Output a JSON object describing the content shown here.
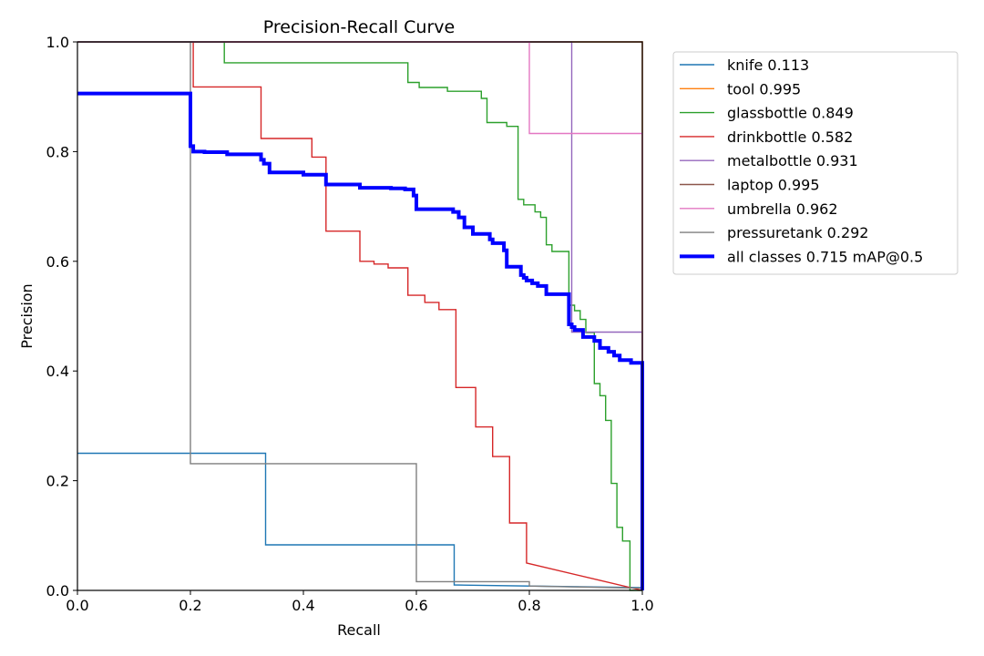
{
  "chart_data": {
    "type": "line",
    "title": "Precision-Recall Curve",
    "xlabel": "Recall",
    "ylabel": "Precision",
    "xlim": [
      0,
      1
    ],
    "ylim": [
      0,
      1
    ],
    "xticks": [
      "0.0",
      "0.2",
      "0.4",
      "0.6",
      "0.8",
      "1.0"
    ],
    "yticks": [
      "0.0",
      "0.2",
      "0.4",
      "0.6",
      "0.8",
      "1.0"
    ],
    "grid": false,
    "legend_position": "outside-right-top",
    "series": [
      {
        "name": "knife 0.113",
        "color": "#1f77b4",
        "x": [
          0.0,
          0.333,
          0.333,
          0.667,
          0.667,
          1.0,
          1.0
        ],
        "y": [
          0.25,
          0.25,
          0.083,
          0.083,
          0.01,
          0.005,
          0.0
        ]
      },
      {
        "name": "tool 0.995",
        "color": "#ff7f0e",
        "x": [
          0.0,
          1.0,
          1.0
        ],
        "y": [
          1.0,
          1.0,
          0.0
        ]
      },
      {
        "name": "glassbottle 0.849",
        "color": "#2ca02c",
        "x": [
          0.0,
          0.26,
          0.26,
          0.585,
          0.585,
          0.605,
          0.605,
          0.655,
          0.655,
          0.715,
          0.715,
          0.725,
          0.725,
          0.76,
          0.76,
          0.78,
          0.78,
          0.79,
          0.79,
          0.81,
          0.81,
          0.82,
          0.82,
          0.83,
          0.83,
          0.84,
          0.84,
          0.87,
          0.87,
          0.88,
          0.88,
          0.89,
          0.89,
          0.9,
          0.9,
          0.915,
          0.915,
          0.925,
          0.925,
          0.935,
          0.935,
          0.945,
          0.945,
          0.955,
          0.955,
          0.965,
          0.965,
          0.978,
          0.978,
          1.0
        ],
        "y": [
          1.0,
          1.0,
          0.962,
          0.962,
          0.926,
          0.926,
          0.917,
          0.917,
          0.91,
          0.91,
          0.897,
          0.897,
          0.853,
          0.853,
          0.846,
          0.846,
          0.713,
          0.713,
          0.703,
          0.703,
          0.69,
          0.69,
          0.68,
          0.68,
          0.63,
          0.63,
          0.618,
          0.618,
          0.52,
          0.52,
          0.51,
          0.51,
          0.494,
          0.494,
          0.47,
          0.47,
          0.377,
          0.377,
          0.355,
          0.355,
          0.31,
          0.31,
          0.195,
          0.195,
          0.115,
          0.115,
          0.09,
          0.09,
          0.0,
          0.0
        ]
      },
      {
        "name": "drinkbottle 0.582",
        "color": "#d62728",
        "x": [
          0.0,
          0.2,
          0.2,
          0.205,
          0.205,
          0.325,
          0.325,
          0.415,
          0.415,
          0.44,
          0.44,
          0.44,
          0.44,
          0.5,
          0.5,
          0.525,
          0.525,
          0.55,
          0.55,
          0.585,
          0.585,
          0.615,
          0.615,
          0.64,
          0.64,
          0.67,
          0.67,
          0.675,
          0.675,
          0.705,
          0.705,
          0.735,
          0.735,
          0.765,
          0.765,
          0.795,
          0.795,
          1.0
        ],
        "y": [
          1.0,
          1.0,
          1.0,
          1.0,
          0.918,
          0.918,
          0.824,
          0.824,
          0.79,
          0.79,
          0.74,
          0.74,
          0.655,
          0.655,
          0.6,
          0.6,
          0.595,
          0.595,
          0.588,
          0.588,
          0.538,
          0.538,
          0.525,
          0.525,
          0.512,
          0.512,
          0.37,
          0.37,
          0.37,
          0.37,
          0.298,
          0.298,
          0.244,
          0.244,
          0.123,
          0.123,
          0.05,
          0.0
        ]
      },
      {
        "name": "metalbottle 0.931",
        "color": "#9467bd",
        "x": [
          0.0,
          0.875,
          0.875,
          1.0,
          1.0
        ],
        "y": [
          1.0,
          1.0,
          0.471,
          0.471,
          0.0
        ]
      },
      {
        "name": "laptop 0.995",
        "color": "#8c564b",
        "x": [
          0.0,
          1.0,
          1.0
        ],
        "y": [
          1.0,
          1.0,
          0.0
        ]
      },
      {
        "name": "umbrella 0.962",
        "color": "#e377c2",
        "x": [
          0.0,
          0.8,
          0.8,
          1.0,
          1.0
        ],
        "y": [
          1.0,
          1.0,
          0.833,
          0.833,
          0.0
        ]
      },
      {
        "name": "pressuretank 0.292",
        "color": "#7f7f7f",
        "x": [
          0.0,
          0.2,
          0.2,
          0.6,
          0.6,
          0.8,
          0.8,
          1.0,
          1.0
        ],
        "y": [
          1.0,
          1.0,
          0.231,
          0.231,
          0.016,
          0.016,
          0.008,
          0.004,
          0.0
        ]
      },
      {
        "name": "all classes 0.715 mAP@0.5",
        "color": "#0000ff",
        "bold": true,
        "x": [
          0.0,
          0.2,
          0.2,
          0.205,
          0.205,
          0.225,
          0.225,
          0.265,
          0.265,
          0.325,
          0.325,
          0.33,
          0.33,
          0.34,
          0.34,
          0.4,
          0.4,
          0.44,
          0.44,
          0.5,
          0.5,
          0.555,
          0.555,
          0.58,
          0.58,
          0.595,
          0.595,
          0.6,
          0.6,
          0.665,
          0.665,
          0.675,
          0.675,
          0.685,
          0.685,
          0.7,
          0.7,
          0.73,
          0.73,
          0.735,
          0.735,
          0.755,
          0.755,
          0.76,
          0.76,
          0.785,
          0.785,
          0.79,
          0.79,
          0.795,
          0.795,
          0.805,
          0.805,
          0.815,
          0.815,
          0.83,
          0.83,
          0.87,
          0.87,
          0.875,
          0.875,
          0.88,
          0.88,
          0.895,
          0.895,
          0.915,
          0.915,
          0.925,
          0.925,
          0.94,
          0.94,
          0.95,
          0.95,
          0.96,
          0.96,
          0.98,
          0.98,
          1.0,
          1.0
        ],
        "y": [
          0.906,
          0.906,
          0.81,
          0.81,
          0.8,
          0.8,
          0.799,
          0.799,
          0.795,
          0.795,
          0.785,
          0.785,
          0.778,
          0.778,
          0.762,
          0.762,
          0.758,
          0.758,
          0.74,
          0.74,
          0.734,
          0.734,
          0.733,
          0.733,
          0.731,
          0.731,
          0.72,
          0.72,
          0.695,
          0.695,
          0.69,
          0.69,
          0.68,
          0.68,
          0.662,
          0.662,
          0.65,
          0.65,
          0.64,
          0.64,
          0.633,
          0.633,
          0.62,
          0.62,
          0.59,
          0.59,
          0.575,
          0.575,
          0.57,
          0.57,
          0.565,
          0.565,
          0.56,
          0.56,
          0.555,
          0.555,
          0.54,
          0.54,
          0.485,
          0.485,
          0.48,
          0.48,
          0.475,
          0.475,
          0.462,
          0.462,
          0.455,
          0.455,
          0.442,
          0.442,
          0.435,
          0.435,
          0.428,
          0.428,
          0.42,
          0.42,
          0.415,
          0.415,
          0.0
        ]
      }
    ]
  }
}
